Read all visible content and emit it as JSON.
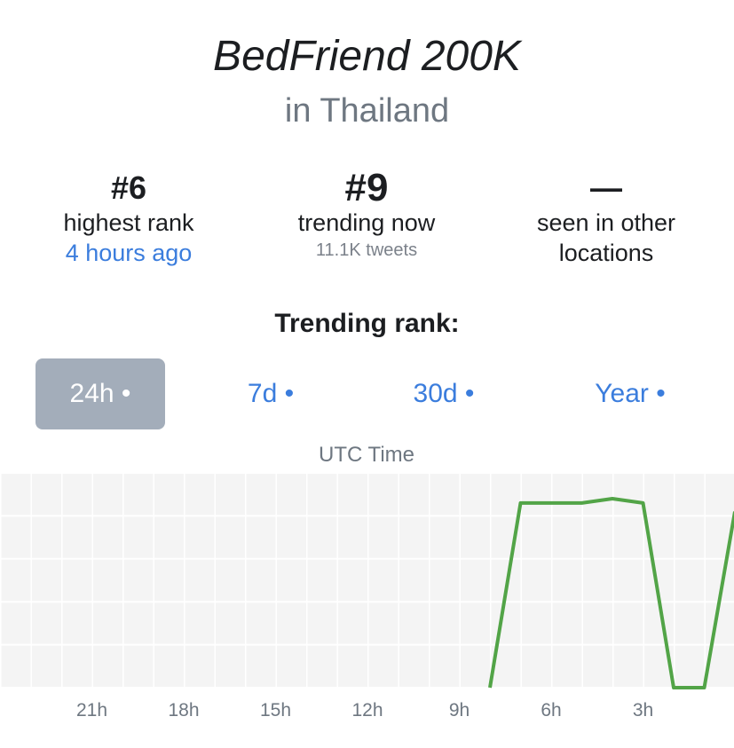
{
  "header": {
    "title": "BedFriend 200K",
    "subtitle": "in Thailand"
  },
  "stats": [
    {
      "value": "#6",
      "label": "highest rank",
      "detail": "4 hours ago"
    },
    {
      "value": "#9",
      "label": "trending now",
      "detail": "11.1K tweets"
    },
    {
      "value": "—",
      "label": "seen in other locations"
    }
  ],
  "section_title": "Trending rank:",
  "tabs": [
    {
      "label": "24h •",
      "active": true
    },
    {
      "label": "7d •",
      "active": false
    },
    {
      "label": "30d •",
      "active": false
    },
    {
      "label": "Year •",
      "active": false
    }
  ],
  "chart_data": {
    "type": "line",
    "x_label": "UTC Time",
    "x": [
      8,
      7,
      6,
      5,
      4,
      3,
      2,
      1,
      0
    ],
    "series": [
      {
        "name": "BedFriend 200K",
        "color": "#52a447",
        "values": [
          50,
          7,
          7,
          7,
          6,
          7,
          50,
          50,
          9
        ]
      }
    ],
    "xlim": [
      24,
      0
    ],
    "xticks": [
      {
        "value": 21,
        "label": "21h"
      },
      {
        "value": 18,
        "label": "18h"
      },
      {
        "value": 15,
        "label": "15h"
      },
      {
        "value": 12,
        "label": "12h"
      },
      {
        "value": 9,
        "label": "9h"
      },
      {
        "value": 6,
        "label": "6h"
      },
      {
        "value": 3,
        "label": "3h"
      }
    ],
    "ylim": [
      50,
      0
    ],
    "yticks": [
      0,
      10,
      20,
      30,
      40,
      50
    ],
    "grid": true
  }
}
